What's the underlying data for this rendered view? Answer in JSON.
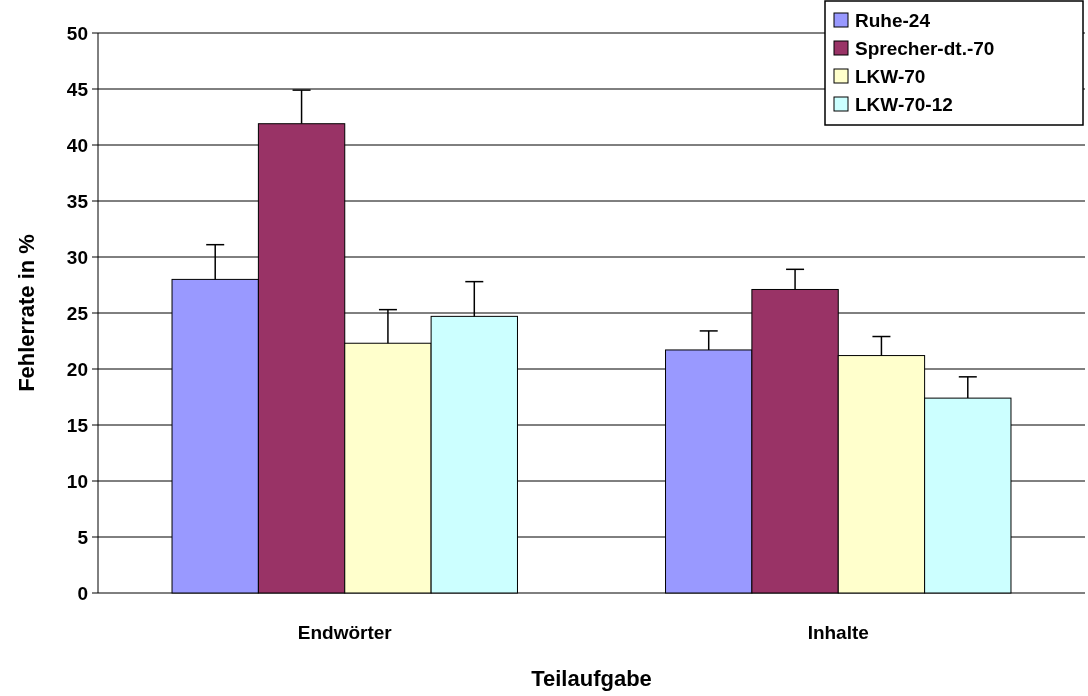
{
  "chart_data": {
    "type": "bar",
    "xlabel": "Teilaufgabe",
    "ylabel": "Fehlerrate in %",
    "categories": [
      "Endwörter",
      "Inhalte"
    ],
    "series": [
      {
        "name": "Ruhe-24",
        "color": "#9999ff",
        "values": [
          28.0,
          21.7
        ],
        "errors": [
          [
            28.0,
            31.1
          ],
          [
            21.7,
            23.4
          ]
        ]
      },
      {
        "name": "Sprecher-dt.-70",
        "color": "#993366",
        "values": [
          41.9,
          27.1
        ],
        "errors": [
          [
            41.9,
            44.9
          ],
          [
            27.1,
            28.9
          ]
        ]
      },
      {
        "name": "LKW-70",
        "color": "#ffffcc",
        "values": [
          22.3,
          21.2
        ],
        "errors": [
          [
            22.3,
            25.3
          ],
          [
            21.2,
            22.9
          ]
        ]
      },
      {
        "name": "LKW-70-12",
        "color": "#ccffff",
        "values": [
          24.7,
          17.4
        ],
        "errors": [
          [
            24.7,
            27.8
          ],
          [
            17.4,
            19.3
          ]
        ]
      }
    ],
    "ylim": [
      0,
      50
    ],
    "yticks": [
      0,
      5,
      10,
      15,
      20,
      25,
      30,
      35,
      40,
      45,
      50
    ],
    "grid": "y",
    "legend": "top right"
  }
}
